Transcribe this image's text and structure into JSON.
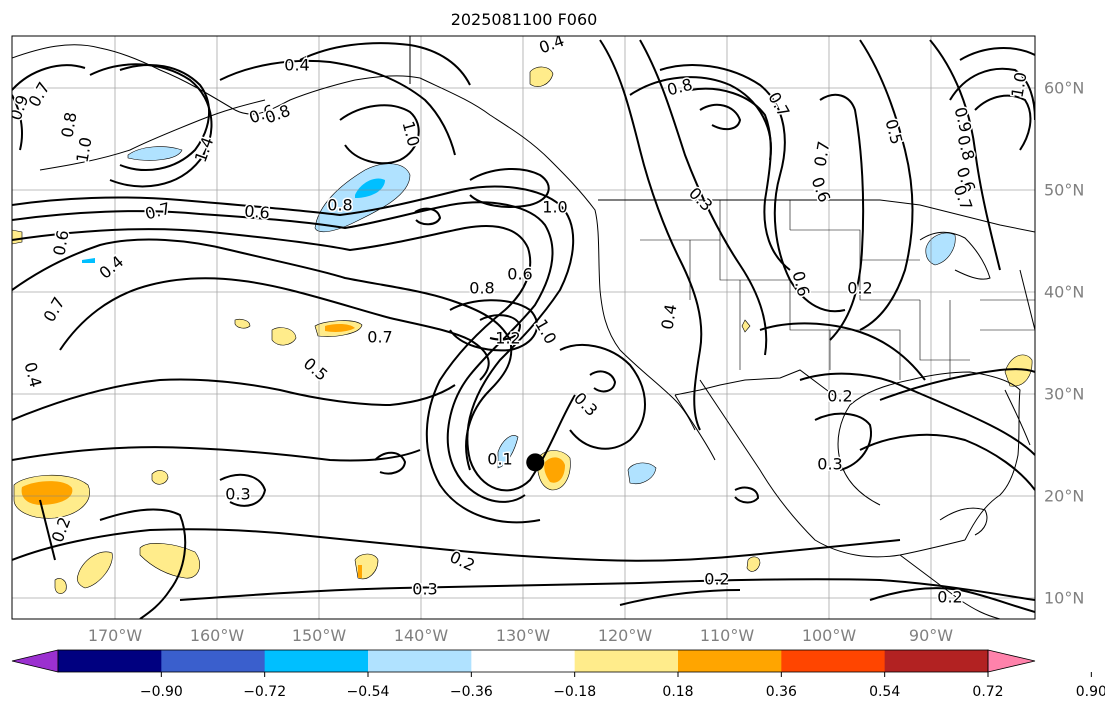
{
  "title": "2025081100 F060",
  "longitude_labels": [
    "170°W",
    "160°W",
    "150°W",
    "140°W",
    "130°W",
    "120°W",
    "110°W",
    "100°W",
    "90°W"
  ],
  "latitude_labels": [
    "60°N",
    "50°N",
    "40°N",
    "30°N",
    "20°N",
    "10°N"
  ],
  "colorbar": {
    "ticks": [
      "−0.90",
      "−0.72",
      "−0.54",
      "−0.36",
      "−0.18",
      "0.18",
      "0.36",
      "0.54",
      "0.72",
      "0.90"
    ],
    "colors": [
      "#9b30d0",
      "#000080",
      "#3a5fcd",
      "#00bfff",
      "#b0e2ff",
      "#ffffff",
      "#ffec8b",
      "#ffa500",
      "#ff4500",
      "#b22222",
      "#ff82ab"
    ]
  },
  "contour_labels": [
    "0.4",
    "0.7",
    "0.8",
    "1.0",
    "1.4",
    "0.6",
    "0.8",
    "0.6",
    "1.0",
    "1.0",
    "0.8",
    "0.7",
    "0.9",
    "0.8",
    "0.6",
    "1.0",
    "1.0",
    "0.3",
    "0.5",
    "0.7",
    "0.6",
    "0.7",
    "0.4",
    "0.7",
    "0.6",
    "0.8",
    "0.4",
    "0.2",
    "0.7",
    "1.2",
    "1.0",
    "0.5",
    "0.3",
    "0.4",
    "0.2",
    "0.2",
    "0.3",
    "0.1",
    "0.3",
    "0.2",
    "0.2",
    "0.2"
  ],
  "marker": {
    "lon": -128.8,
    "lat": 23.3
  }
}
